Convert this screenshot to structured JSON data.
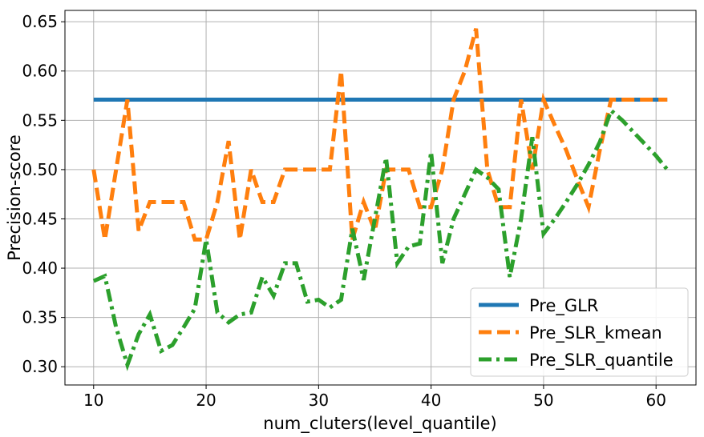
{
  "chart_data": {
    "type": "line",
    "title": "",
    "xlabel": "num_cluters(level_quantile)",
    "ylabel": "Precision-score",
    "xlim": [
      7.45,
      63.55
    ],
    "ylim": [
      0.2815,
      0.6615
    ],
    "xticks": [
      10,
      20,
      30,
      40,
      50,
      60
    ],
    "yticks": [
      0.3,
      0.35,
      0.4,
      0.45,
      0.5,
      0.55,
      0.6,
      0.65
    ],
    "xtick_labels": [
      "10",
      "20",
      "30",
      "40",
      "50",
      "60"
    ],
    "ytick_labels": [
      "0.30",
      "0.35",
      "0.40",
      "0.45",
      "0.50",
      "0.55",
      "0.60",
      "0.65"
    ],
    "grid": true,
    "legend_position": "lower-right",
    "x": [
      10,
      11,
      12,
      13,
      14,
      15,
      16,
      17,
      18,
      19,
      20,
      21,
      22,
      23,
      24,
      25,
      26,
      27,
      28,
      29,
      30,
      31,
      32,
      33,
      34,
      35,
      36,
      37,
      38,
      39,
      40,
      41,
      42,
      43,
      44,
      45,
      46,
      47,
      48,
      49,
      50,
      51,
      52,
      53,
      54,
      55,
      56,
      57,
      58,
      59,
      60,
      61
    ],
    "series": [
      {
        "name": "Pre_GLR",
        "color": "#1f77b4",
        "dash": "solid",
        "values": [
          0.571,
          0.571,
          0.571,
          0.571,
          0.571,
          0.571,
          0.571,
          0.571,
          0.571,
          0.571,
          0.571,
          0.571,
          0.571,
          0.571,
          0.571,
          0.571,
          0.571,
          0.571,
          0.571,
          0.571,
          0.571,
          0.571,
          0.571,
          0.571,
          0.571,
          0.571,
          0.571,
          0.571,
          0.571,
          0.571,
          0.571,
          0.571,
          0.571,
          0.571,
          0.571,
          0.571,
          0.571,
          0.571,
          0.571,
          0.571,
          0.571,
          0.571,
          0.571,
          0.571,
          0.571,
          0.571,
          0.571,
          0.571,
          0.571,
          0.571,
          0.571,
          0.571
        ]
      },
      {
        "name": "Pre_SLR_kmean",
        "color": "#ff7f0e",
        "dash": "dashed",
        "values": [
          0.5,
          0.429,
          0.5,
          0.571,
          0.438,
          0.467,
          0.467,
          0.467,
          0.467,
          0.429,
          0.429,
          0.467,
          0.529,
          0.429,
          0.5,
          0.467,
          0.467,
          0.5,
          0.5,
          0.5,
          0.5,
          0.5,
          0.6,
          0.429,
          0.467,
          0.438,
          0.5,
          0.5,
          0.5,
          0.462,
          0.462,
          0.5,
          0.571,
          0.6,
          0.643,
          0.5,
          0.462,
          0.462,
          0.571,
          0.5,
          0.571,
          0.545,
          0.52,
          0.49,
          0.462,
          0.52,
          0.571,
          0.571,
          0.571,
          0.571,
          0.571,
          0.571
        ]
      },
      {
        "name": "Pre_SLR_quantile",
        "color": "#2ca02c",
        "dash": "dashdot",
        "values": [
          0.387,
          0.392,
          0.34,
          0.302,
          0.333,
          0.353,
          0.316,
          0.322,
          0.34,
          0.359,
          0.429,
          0.355,
          0.345,
          0.353,
          0.355,
          0.391,
          0.372,
          0.405,
          0.405,
          0.366,
          0.368,
          0.36,
          0.368,
          0.44,
          0.388,
          0.45,
          0.512,
          0.405,
          0.422,
          0.425,
          0.518,
          0.405,
          0.45,
          0.475,
          0.5,
          0.492,
          0.48,
          0.391,
          0.45,
          0.533,
          0.435,
          0.45,
          0.467,
          0.485,
          0.505,
          0.528,
          0.56,
          0.55,
          0.538,
          0.526,
          0.514,
          0.5
        ]
      }
    ]
  }
}
